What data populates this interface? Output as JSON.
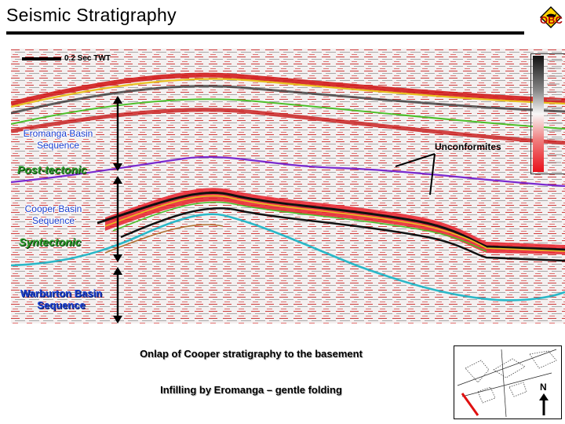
{
  "header": {
    "title": "Seismic Stratigraphy",
    "logo_text": "OBC"
  },
  "seismic": {
    "scale_label": "0.2 Sec TWT",
    "unconformities_label": "Unconformites"
  },
  "sequences": {
    "eromanga_label": "Eromanga Basin Sequence",
    "post_tectonic": "Post-tectonic",
    "cooper_label": "Cooper Basin Sequence",
    "syntectonic": "Syntectonic",
    "warburton_label": "Warburton Basin Sequence"
  },
  "captions": {
    "line1": "Onlap of Cooper stratigraphy to the basement",
    "line2": "Infilling by Eromanga – gentle folding"
  },
  "location_map": {
    "north_label": "N"
  },
  "colors": {
    "accent_blue": "#1a3fd0",
    "green_text": "#2a9a2a",
    "seismic_red": "#e8202a",
    "horizon_yellow": "#e8c020",
    "horizon_green": "#4cc02a",
    "horizon_purple": "#7a2ad0",
    "horizon_cyan": "#2ab8c8"
  }
}
